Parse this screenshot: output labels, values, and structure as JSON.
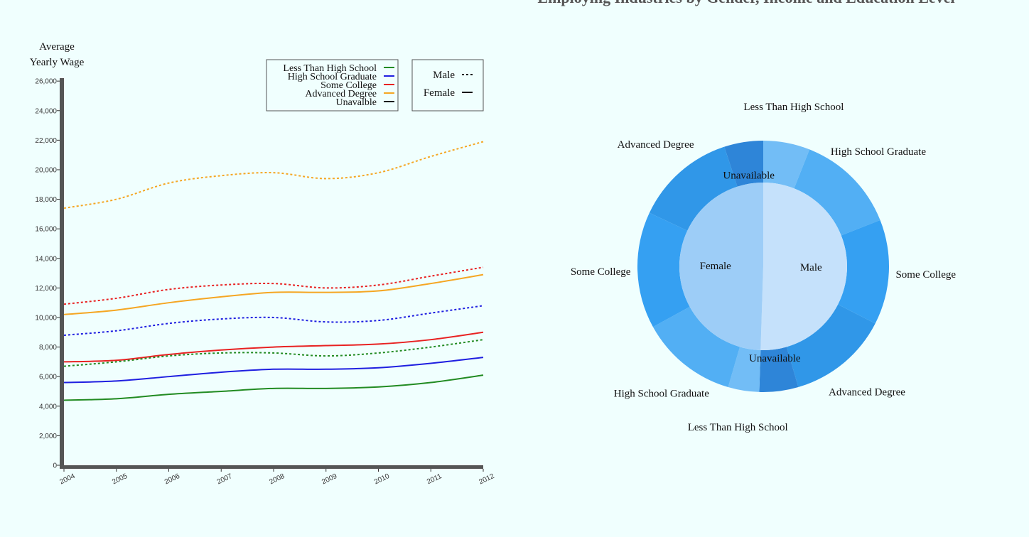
{
  "page_title": "Employing Industries by Gender, Income and Education Level",
  "chart_data": [
    {
      "type": "line",
      "ylabel": [
        "Average",
        "Yearly Wage"
      ],
      "x": [
        2004,
        2005,
        2006,
        2007,
        2008,
        2009,
        2010,
        2011,
        2012
      ],
      "ylim": [
        0,
        26200
      ],
      "yticks": [
        0,
        2000,
        4000,
        6000,
        8000,
        10000,
        12000,
        14000,
        16000,
        18000,
        20000,
        22000,
        24000,
        26000
      ],
      "ytick_labels": [
        "0",
        "2,000",
        "4,000",
        "6,000",
        "8,000",
        "10,000",
        "12,000",
        "14,000",
        "16,000",
        "18,000",
        "20,000",
        "22,000",
        "24,000",
        "26,000"
      ],
      "legend_education": [
        {
          "label": "Less Than High School",
          "color": "#228b22"
        },
        {
          "label": "High School Graduate",
          "color": "#1f1fe0"
        },
        {
          "label": "Some College",
          "color": "#e82222"
        },
        {
          "label": "Advanced Degree",
          "color": "#f5a623"
        },
        {
          "label": "Unavalble",
          "color": "#111111"
        }
      ],
      "legend_gender": [
        {
          "label": "Male",
          "dash": "dotted"
        },
        {
          "label": "Female",
          "dash": "solid"
        }
      ],
      "series": [
        {
          "education": "Advanced Degree",
          "gender": "Male",
          "color": "#f5a623",
          "dash": true,
          "values": [
            17400,
            18000,
            19100,
            19600,
            19800,
            19400,
            19800,
            20900,
            21900
          ]
        },
        {
          "education": "Some College",
          "gender": "Male",
          "color": "#e82222",
          "dash": true,
          "values": [
            10900,
            11300,
            11900,
            12200,
            12300,
            12000,
            12200,
            12800,
            13400
          ]
        },
        {
          "education": "Advanced Degree",
          "gender": "Female",
          "color": "#f5a623",
          "dash": false,
          "values": [
            10200,
            10500,
            11000,
            11400,
            11700,
            11700,
            11800,
            12300,
            12900
          ]
        },
        {
          "education": "High School Graduate",
          "gender": "Male",
          "color": "#1f1fe0",
          "dash": true,
          "values": [
            8800,
            9100,
            9600,
            9900,
            10000,
            9700,
            9800,
            10300,
            10800
          ]
        },
        {
          "education": "Some College",
          "gender": "Female",
          "color": "#e82222",
          "dash": false,
          "values": [
            7000,
            7100,
            7500,
            7800,
            8000,
            8100,
            8200,
            8500,
            9000
          ]
        },
        {
          "education": "Less Than High School",
          "gender": "Male",
          "color": "#228b22",
          "dash": true,
          "values": [
            6700,
            7000,
            7400,
            7600,
            7600,
            7400,
            7600,
            8000,
            8500
          ]
        },
        {
          "education": "High School Graduate",
          "gender": "Female",
          "color": "#1f1fe0",
          "dash": false,
          "values": [
            5600,
            5700,
            6000,
            6300,
            6500,
            6500,
            6600,
            6900,
            7300
          ]
        },
        {
          "education": "Less Than High School",
          "gender": "Female",
          "color": "#228b22",
          "dash": false,
          "values": [
            4400,
            4500,
            4800,
            5000,
            5200,
            5200,
            5300,
            5600,
            6100
          ]
        }
      ]
    },
    {
      "type": "pie",
      "inner": [
        {
          "label": "Male",
          "value": 50.5,
          "color": "#c5e1fb"
        },
        {
          "label": "Female",
          "value": 49.5,
          "color": "#9dcdf7"
        }
      ],
      "outer": [
        {
          "label": "Less Than High School",
          "value": 6.0,
          "color": "#72bdf6"
        },
        {
          "label": "High School Graduate",
          "value": 13.0,
          "color": "#52aff4"
        },
        {
          "label": "Some College",
          "value": 13.5,
          "color": "#35a0f2"
        },
        {
          "label": "Advanced Degree",
          "value": 13.0,
          "color": "#3097e8"
        },
        {
          "label": "Unavailable",
          "value": 5.0,
          "color": "#2e85d8"
        },
        {
          "label": "Less Than High School",
          "value": 4.0,
          "color": "#72bdf6"
        },
        {
          "label": "High School Graduate",
          "value": 12.5,
          "color": "#52aff4"
        },
        {
          "label": "Some College",
          "value": 15.0,
          "color": "#35a0f2"
        },
        {
          "label": "Advanced Degree",
          "value": 13.0,
          "color": "#3097e8"
        },
        {
          "label": "Unavailable",
          "value": 5.0,
          "color": "#2e85d8"
        }
      ]
    }
  ]
}
